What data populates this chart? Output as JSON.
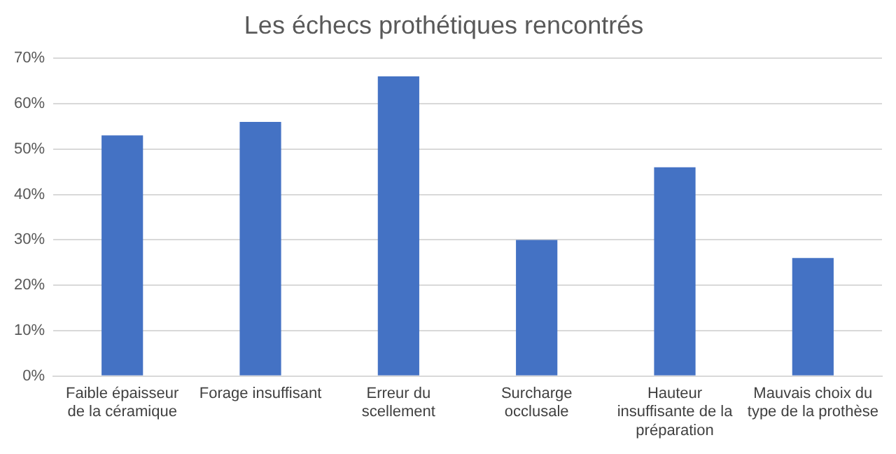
{
  "chart_data": {
    "type": "bar",
    "title": "Les échecs prothétiques rencontrés",
    "categories": [
      "Faible épaisseur de la céramique",
      "Forage insuffisant",
      "Erreur du scellement",
      "Surcharge occlusale",
      "Hauteur insuffisante de la préparation",
      "Mauvais choix du type de la prothèse"
    ],
    "values": [
      53,
      56,
      66,
      30,
      46,
      26
    ],
    "color": "#4472c4",
    "ylim": [
      0,
      70
    ],
    "yticks": [
      {
        "value": 0,
        "label": "0%"
      },
      {
        "value": 10,
        "label": "10%"
      },
      {
        "value": 20,
        "label": "20%"
      },
      {
        "value": 30,
        "label": "30%"
      },
      {
        "value": 40,
        "label": "40%"
      },
      {
        "value": 50,
        "label": "50%"
      },
      {
        "value": 60,
        "label": "60%"
      },
      {
        "value": 70,
        "label": "70%"
      }
    ],
    "grid": "y"
  }
}
